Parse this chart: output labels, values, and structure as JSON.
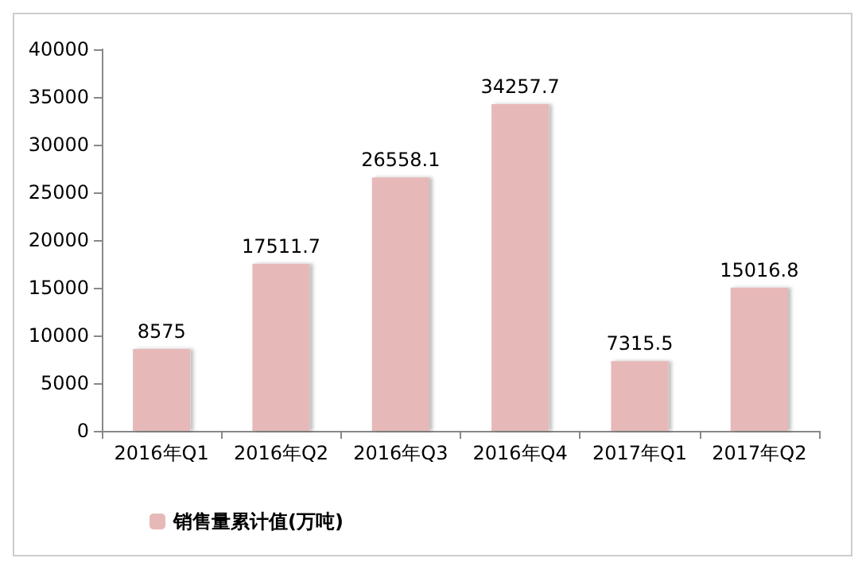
{
  "chart_data": {
    "type": "bar",
    "categories": [
      "2016年Q1",
      "2016年Q2",
      "2016年Q3",
      "2016年Q4",
      "2017年Q1",
      "2017年Q2"
    ],
    "series": [
      {
        "name": "销售量累计值(万吨)",
        "color": "#e6b9b8",
        "values": [
          8575,
          17511.7,
          26558.1,
          34257.7,
          7315.5,
          15016.8
        ]
      }
    ],
    "ylim": [
      0,
      40000
    ],
    "yticks": [
      0,
      5000,
      10000,
      15000,
      20000,
      25000,
      30000,
      35000,
      40000
    ],
    "data_labels": true,
    "grid": false,
    "legend": "bottom left"
  }
}
